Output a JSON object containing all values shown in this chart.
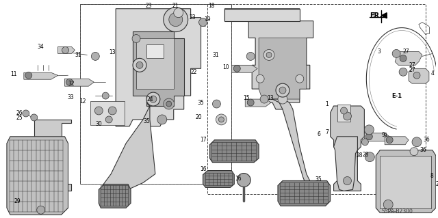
{
  "background_color": "#ffffff",
  "fig_width": 6.4,
  "fig_height": 3.19,
  "dpi": 100,
  "diagram_code": "S5PA-B2300"
}
